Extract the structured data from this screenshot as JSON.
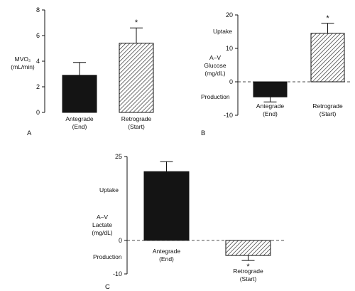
{
  "chart_data": [
    {
      "panel": "A",
      "type": "bar",
      "ylabel": "MVO₂ (mL/min)",
      "ylabel_lines": [
        "MVO₂",
        "(mL/min)"
      ],
      "ylim": [
        0,
        8
      ],
      "yticks": [
        0,
        2,
        4,
        6,
        8
      ],
      "categories": [
        "Antegrade (End)",
        "Retrograde (Start)"
      ],
      "category_lines": [
        [
          "Antegrade",
          "(End)"
        ],
        [
          "Retrograde",
          "(Start)"
        ]
      ],
      "values": [
        2.9,
        5.4
      ],
      "errors": [
        1.0,
        1.2
      ],
      "fills": [
        "solid",
        "hatched"
      ],
      "significance": [
        "",
        "*"
      ]
    },
    {
      "panel": "B",
      "type": "bar",
      "ylabel": "A–V Glucose (mg/dL)",
      "ylabel_lines": [
        "A–V",
        "Glucose",
        "(mg/dL)"
      ],
      "side_labels": {
        "top": "Uptake",
        "bottom": "Production"
      },
      "ylim": [
        -10,
        20
      ],
      "yticks": [
        -10,
        0,
        10,
        20
      ],
      "zero_line": "dashed",
      "categories": [
        "Antegrade (End)",
        "Retrograde (Start)"
      ],
      "category_lines": [
        [
          "Antegrade",
          "(End)"
        ],
        [
          "Retrograde",
          "(Start)"
        ]
      ],
      "values": [
        -4.5,
        14.5
      ],
      "errors": [
        1.5,
        3.0
      ],
      "fills": [
        "solid",
        "hatched"
      ],
      "significance": [
        "",
        "*"
      ]
    },
    {
      "panel": "C",
      "type": "bar",
      "ylabel": "A–V Lactate (mg/dL)",
      "ylabel_lines": [
        "A–V",
        "Lactate",
        "(mg/dL)"
      ],
      "side_labels": {
        "top": "Uptake",
        "bottom": "Production"
      },
      "ylim": [
        -10,
        25
      ],
      "yticks": [
        -10,
        0,
        25
      ],
      "zero_line": "dashed",
      "categories": [
        "Antegrade (End)",
        "Retrograde (Start)"
      ],
      "category_lines": [
        [
          "Antegrade",
          "(End)"
        ],
        [
          "Retrograde",
          "(Start)"
        ]
      ],
      "values": [
        20.5,
        -4.5
      ],
      "errors": [
        3.0,
        1.5
      ],
      "fills": [
        "solid",
        "hatched"
      ],
      "significance": [
        "",
        "*"
      ]
    }
  ],
  "colors": {
    "bar_solid": "#141414",
    "hatch": "#222222",
    "axis": "#111111"
  }
}
